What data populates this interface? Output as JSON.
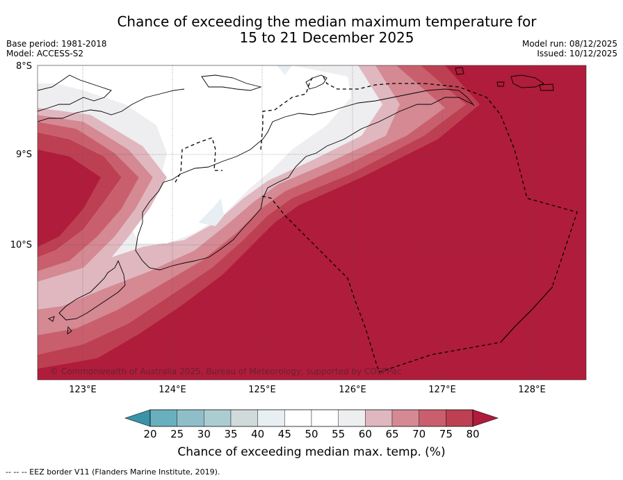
{
  "title_line1": "Chance of exceeding the median maximum temperature for",
  "title_line2": "15 to 21 December 2025",
  "base_period": "Base period: 1981-2018",
  "model": "Model: ACCESS-S2",
  "model_run": "Model run: 08/12/2025",
  "issued": "Issued: 10/12/2025",
  "lat_labels": [
    "8°S",
    "9°S",
    "10°S"
  ],
  "lon_labels": [
    "123°E",
    "124°E",
    "125°E",
    "126°E",
    "127°E",
    "128°E"
  ],
  "copyright": "© Commonwealth of Australia 2025, Bureau of Meteorology, supported by COSPPac",
  "colorbar": {
    "label": "Chance of exceeding median max. temp. (%)",
    "ticks": [
      "20",
      "25",
      "30",
      "35",
      "40",
      "45",
      "50",
      "55",
      "60",
      "65",
      "70",
      "75",
      "80"
    ],
    "colors": [
      "#3a93a7",
      "#69b0bf",
      "#8fbec9",
      "#abcdd2",
      "#d1dadb",
      "#e8eff3",
      "#ffffff",
      "#ffffff",
      "#eeedef",
      "#e0b7bf",
      "#d48993",
      "#c95f6d",
      "#bd4052",
      "#b01c3b"
    ]
  },
  "footer": "--  --  -- EEZ border V11 (Flanders Marine Institute, 2019)."
}
